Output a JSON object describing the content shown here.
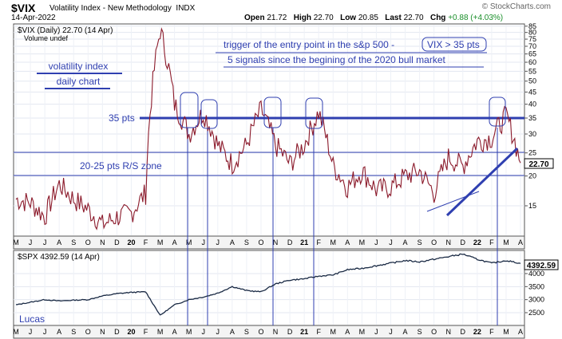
{
  "header": {
    "ticker": "$VIX",
    "index_name": "Volatility Index - New Methodology",
    "exchange": "INDX",
    "date": "14-Apr-2022",
    "open_label": "Open",
    "open": "21.72",
    "high_label": "High",
    "high": "22.70",
    "low_label": "Low",
    "low": "20.85",
    "last_label": "Last",
    "last": "22.70",
    "chg_label": "Chg",
    "chg": "+0.88 (+4.03%)",
    "watermark": "© StockCharts.com"
  },
  "colors": {
    "vix_line": "#8b1a2b",
    "annotation": "#2f3fb0",
    "spx_line": "#1a2a44",
    "grid": "#cfd6e6",
    "frame": "#555555"
  },
  "chart_data": [
    {
      "type": "line",
      "legend": "$VIX (Daily) 22.70 (14 Apr)",
      "legend2": "Volume undef",
      "yscale": "log",
      "ylim": [
        10,
        85
      ],
      "y_ticks": [
        15,
        20,
        25,
        30,
        35,
        40,
        45,
        50,
        55,
        60,
        65,
        70,
        75,
        80,
        85
      ],
      "last_value_label": "22.70",
      "x_tick_labels": [
        "M",
        "J",
        "J",
        "A",
        "S",
        "O",
        "N",
        "D",
        "20",
        "F",
        "M",
        "A",
        "M",
        "J",
        "J",
        "A",
        "S",
        "O",
        "N",
        "D",
        "21",
        "F",
        "M",
        "A",
        "M",
        "J",
        "J",
        "A",
        "S",
        "O",
        "N",
        "D",
        "22",
        "F",
        "M",
        "A"
      ],
      "series": [
        {
          "x": [
            "2019-05",
            "2019-06",
            "2019-07",
            "2019-08",
            "2019-09",
            "2019-10",
            "2019-11",
            "2019-12",
            "2020-01",
            "2020-02",
            "2020-03",
            "2020-04",
            "2020-05",
            "2020-06",
            "2020-07",
            "2020-08",
            "2020-09",
            "2020-10",
            "2020-11",
            "2020-12",
            "2021-01",
            "2021-02",
            "2021-03",
            "2021-04",
            "2021-05",
            "2021-06",
            "2021-07",
            "2021-08",
            "2021-09",
            "2021-10",
            "2021-11",
            "2021-12",
            "2022-01",
            "2022-02",
            "2022-03",
            "2022-04"
          ],
          "values": [
            16.0,
            15.5,
            13.5,
            18.5,
            16.0,
            14.5,
            12.5,
            13.5,
            14.0,
            17.0,
            82.0,
            40.0,
            30.0,
            37.0,
            27.0,
            22.5,
            27.0,
            38.0,
            27.0,
            22.5,
            27.0,
            37.0,
            22.0,
            18.0,
            21.0,
            17.5,
            18.0,
            20.0,
            21.0,
            17.0,
            24.0,
            22.0,
            28.0,
            29.0,
            36.0,
            22.7
          ]
        }
      ],
      "annotations": [
        "volatility index",
        "daily chart",
        "trigger of the entry point in the s&p 500  -",
        "VIX > 35 pts",
        "5 signals since the begining of the 2020 bull market",
        "35 pts",
        "20-25 pts R/S zone"
      ]
    },
    {
      "type": "line",
      "legend": "$SPX 4392.59 (14 Apr)",
      "ylim": [
        2200,
        4800
      ],
      "y_ticks": [
        2500,
        3000,
        3500,
        4000
      ],
      "last_value_label": "4392.59",
      "x_tick_labels": [
        "M",
        "J",
        "J",
        "A",
        "S",
        "O",
        "N",
        "D",
        "20",
        "F",
        "M",
        "A",
        "M",
        "J",
        "J",
        "A",
        "S",
        "O",
        "N",
        "D",
        "21",
        "F",
        "M",
        "A",
        "M",
        "J",
        "J",
        "A",
        "S",
        "O",
        "N",
        "D",
        "22",
        "F",
        "M",
        "A"
      ],
      "series": [
        {
          "x": [
            "2019-05",
            "2019-06",
            "2019-07",
            "2019-08",
            "2019-09",
            "2019-10",
            "2019-11",
            "2019-12",
            "2020-01",
            "2020-02",
            "2020-03",
            "2020-04",
            "2020-05",
            "2020-06",
            "2020-07",
            "2020-08",
            "2020-09",
            "2020-10",
            "2020-11",
            "2020-12",
            "2021-01",
            "2021-02",
            "2021-03",
            "2021-04",
            "2021-05",
            "2021-06",
            "2021-07",
            "2021-08",
            "2021-09",
            "2021-10",
            "2021-11",
            "2021-12",
            "2022-01",
            "2022-02",
            "2022-03",
            "2022-04"
          ],
          "values": [
            2800,
            2900,
            3000,
            2950,
            2980,
            3000,
            3140,
            3230,
            3280,
            3300,
            2400,
            2800,
            3000,
            3100,
            3250,
            3500,
            3350,
            3300,
            3600,
            3750,
            3800,
            3900,
            3950,
            4150,
            4200,
            4300,
            4400,
            4500,
            4450,
            4550,
            4650,
            4750,
            4550,
            4400,
            4500,
            4392.59
          ]
        }
      ],
      "annotations": [
        "Lucas"
      ]
    }
  ]
}
